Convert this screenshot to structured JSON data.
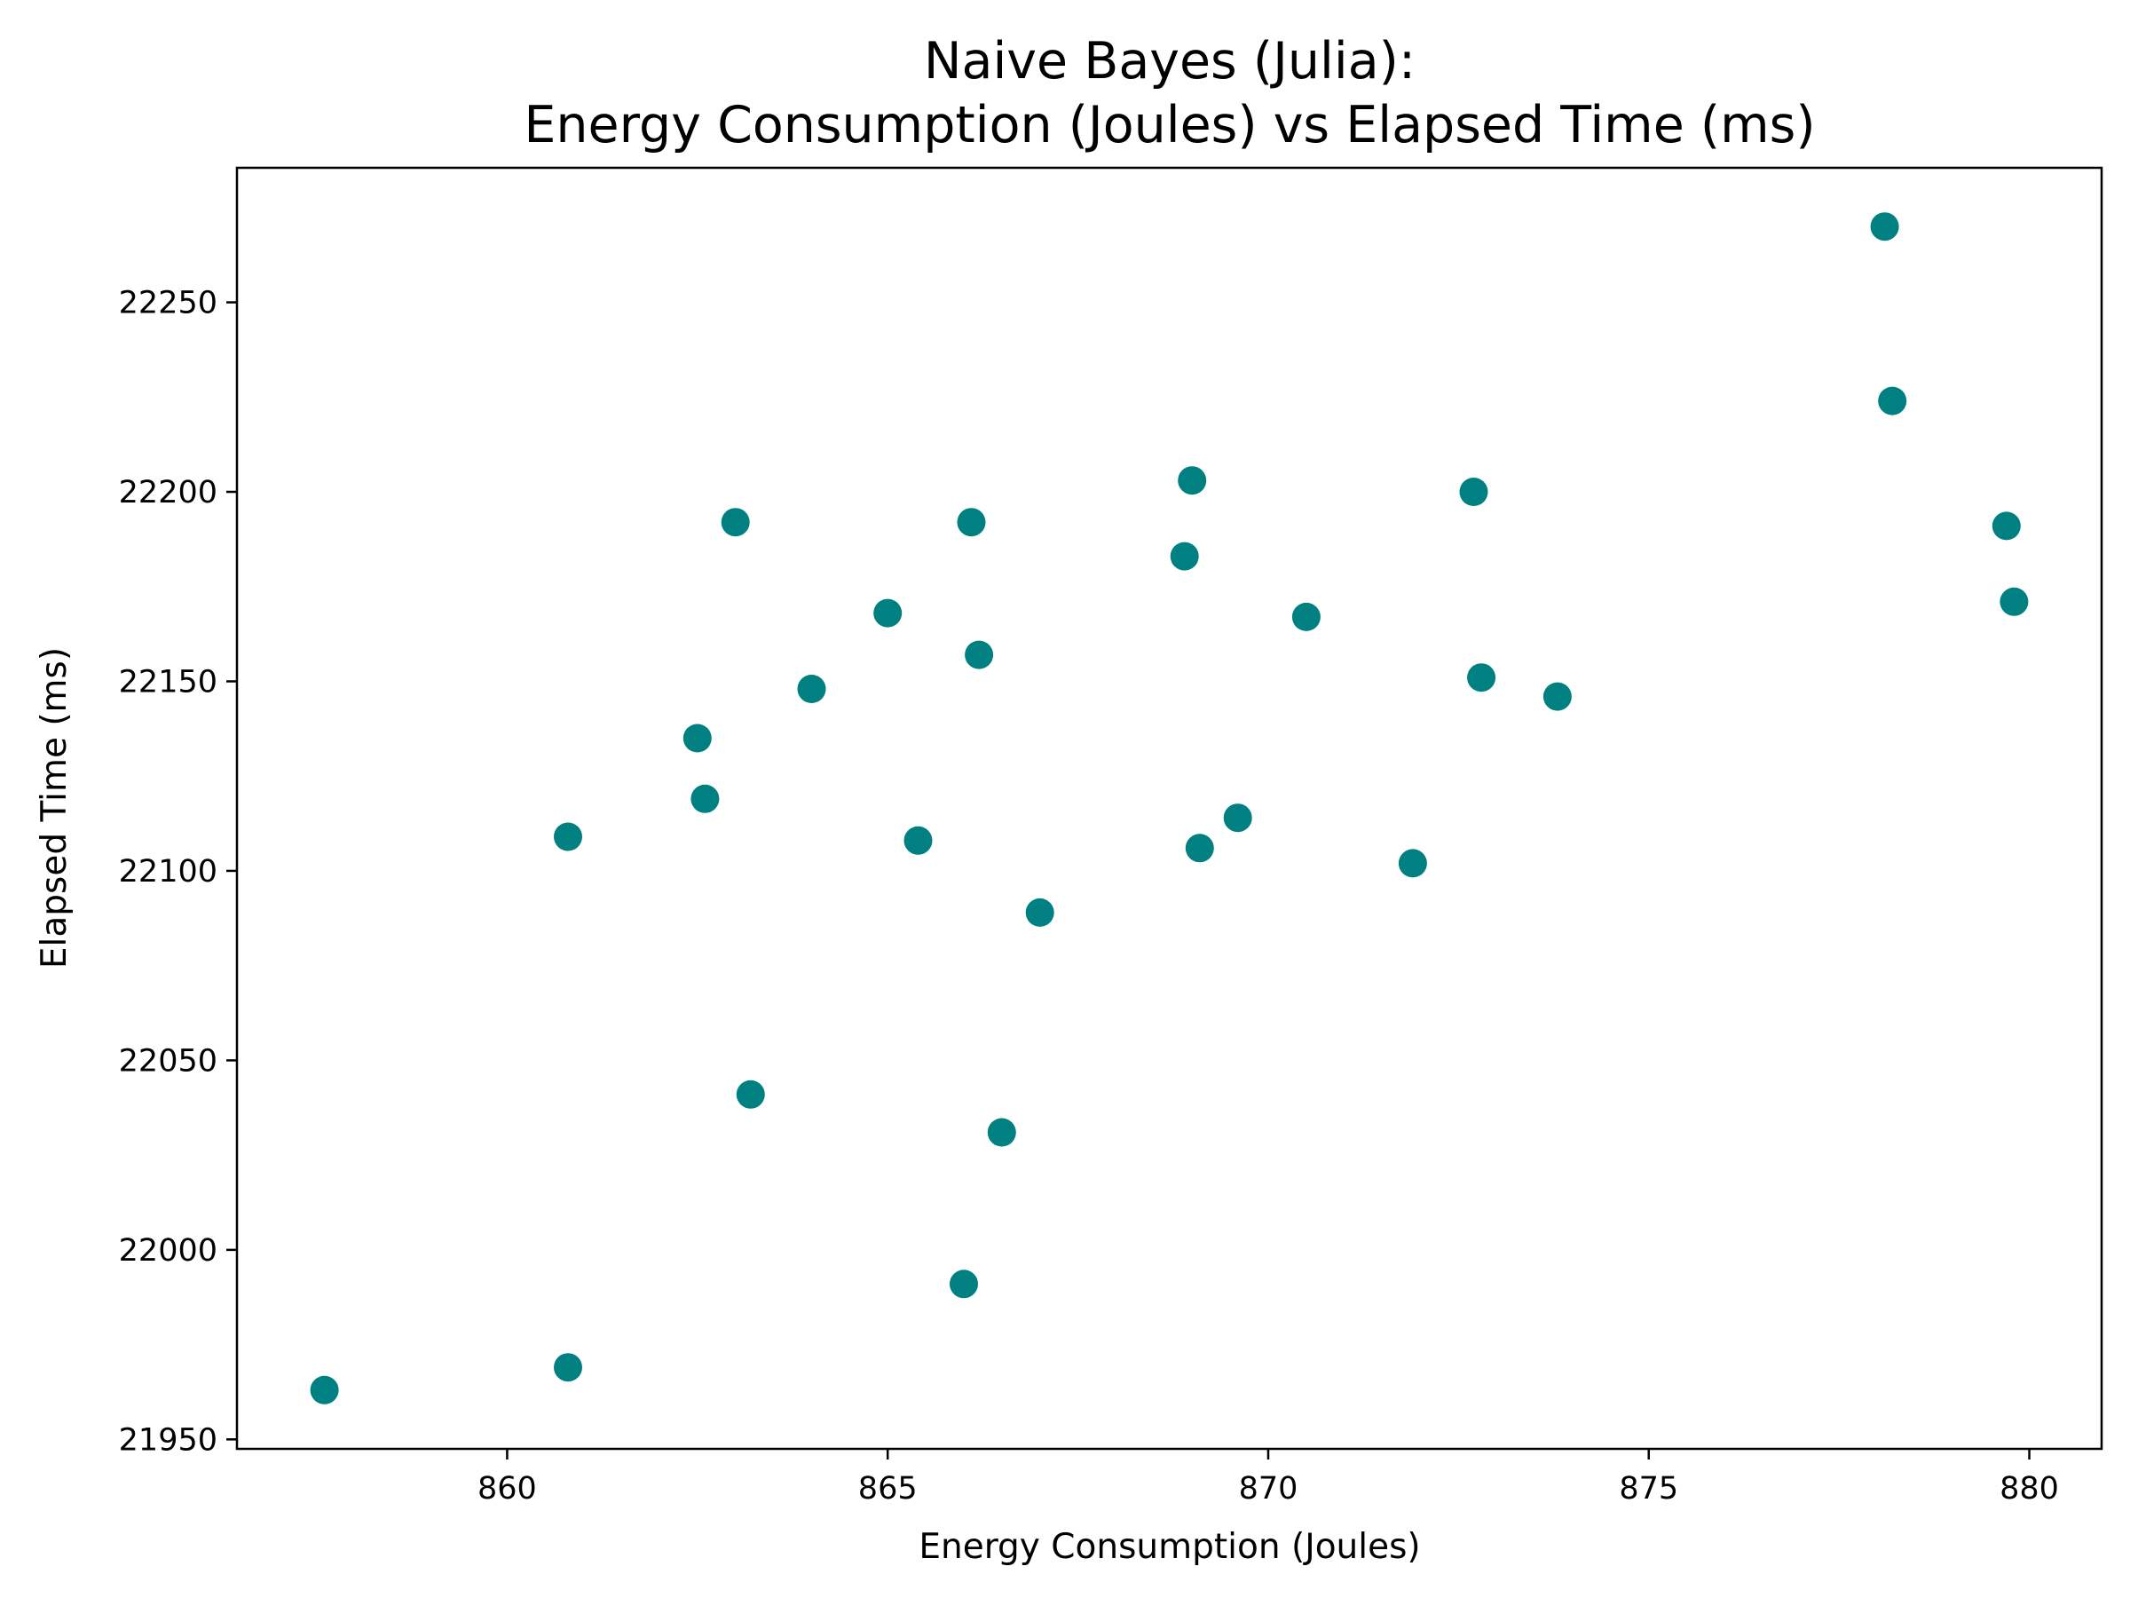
{
  "chart_data": {
    "type": "scatter",
    "title": [
      "Naive Bayes (Julia):",
      "Energy Consumption (Joules) vs Elapsed Time (ms)"
    ],
    "xlabel": "Energy Consumption (Joules)",
    "ylabel": "Elapsed Time (ms)",
    "xlim": [
      856.45,
      880.95
    ],
    "ylim": [
      21947.5,
      22285.5
    ],
    "xticks": [
      860,
      865,
      870,
      875,
      880
    ],
    "yticks": [
      21950,
      22000,
      22050,
      22100,
      22150,
      22200,
      22250
    ],
    "grid": false,
    "legend": "none",
    "marker_color": "#008080",
    "points": [
      {
        "x": 857.6,
        "y": 21963
      },
      {
        "x": 860.8,
        "y": 21969
      },
      {
        "x": 860.8,
        "y": 22109
      },
      {
        "x": 862.5,
        "y": 22135
      },
      {
        "x": 862.6,
        "y": 22119
      },
      {
        "x": 863.0,
        "y": 22192
      },
      {
        "x": 863.2,
        "y": 22041
      },
      {
        "x": 864.0,
        "y": 22148
      },
      {
        "x": 865.0,
        "y": 22168
      },
      {
        "x": 865.4,
        "y": 22108
      },
      {
        "x": 866.0,
        "y": 21991
      },
      {
        "x": 866.1,
        "y": 22192
      },
      {
        "x": 866.2,
        "y": 22157
      },
      {
        "x": 866.5,
        "y": 22031
      },
      {
        "x": 867.0,
        "y": 22089
      },
      {
        "x": 868.9,
        "y": 22183
      },
      {
        "x": 869.0,
        "y": 22203
      },
      {
        "x": 869.1,
        "y": 22106
      },
      {
        "x": 869.6,
        "y": 22114
      },
      {
        "x": 870.5,
        "y": 22167
      },
      {
        "x": 871.9,
        "y": 22102
      },
      {
        "x": 872.7,
        "y": 22200
      },
      {
        "x": 872.8,
        "y": 22151
      },
      {
        "x": 873.8,
        "y": 22146
      },
      {
        "x": 878.1,
        "y": 22270
      },
      {
        "x": 878.2,
        "y": 22224
      },
      {
        "x": 879.7,
        "y": 22191
      },
      {
        "x": 879.8,
        "y": 22171
      }
    ]
  }
}
